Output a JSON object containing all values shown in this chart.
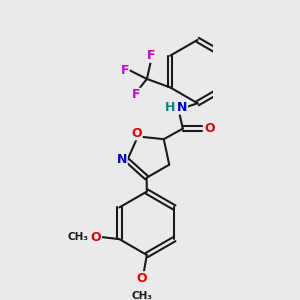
{
  "background_color": "#e8eaec",
  "bond_color": "#1a1a1a",
  "bond_width": 1.5,
  "atom_colors": {
    "O": "#dd0000",
    "N": "#0000cc",
    "F": "#cc00cc",
    "H": "#008888",
    "C": "#1a1a1a"
  },
  "font_size": 9
}
